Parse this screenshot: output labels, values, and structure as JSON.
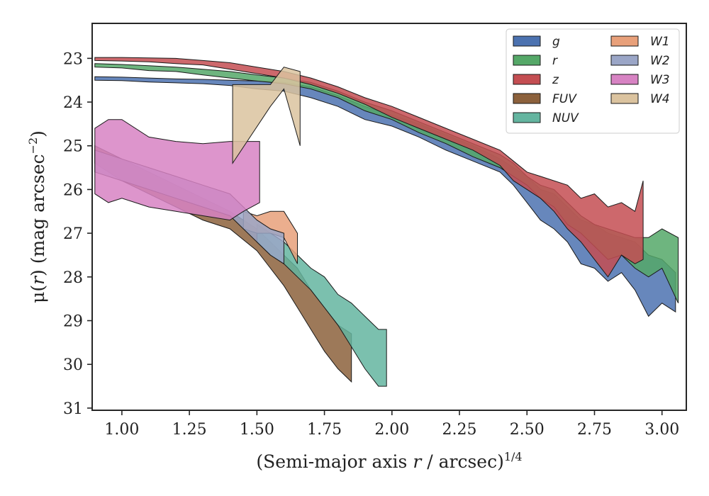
{
  "chart_data": {
    "type": "area",
    "xlabel": {
      "pre": "(Semi-major axis ",
      "var": "r",
      "post": " / arcsec)",
      "sup": "1/4"
    },
    "ylabel": {
      "pre": "μ(",
      "var": "r",
      "post": ") (mag arcsec",
      "sup": "−2",
      "end": ")"
    },
    "xlim": [
      0.89,
      3.09
    ],
    "ylim": [
      31.05,
      22.2
    ],
    "y_inverted": true,
    "xticks": [
      1.0,
      1.25,
      1.5,
      1.75,
      2.0,
      2.25,
      2.5,
      2.75,
      3.0
    ],
    "xtick_labels": [
      "1.00",
      "1.25",
      "1.50",
      "1.75",
      "2.00",
      "2.25",
      "2.50",
      "2.75",
      "3.00"
    ],
    "yticks": [
      23,
      24,
      25,
      26,
      27,
      28,
      29,
      30,
      31
    ],
    "ytick_labels": [
      "23",
      "24",
      "25",
      "26",
      "27",
      "28",
      "29",
      "30",
      "31"
    ],
    "grid": false,
    "legend": {
      "placement": "top-right",
      "columns": 2
    },
    "series": [
      {
        "name": "g",
        "color": "#4c72b0",
        "x": [
          0.9,
          1.0,
          1.1,
          1.2,
          1.3,
          1.4,
          1.5,
          1.6,
          1.7,
          1.8,
          1.9,
          2.0,
          2.1,
          2.2,
          2.3,
          2.4,
          2.45,
          2.5,
          2.55,
          2.6,
          2.65,
          2.7,
          2.75,
          2.8,
          2.85,
          2.9,
          2.95,
          3.0,
          3.05
        ],
        "y1": [
          23.42,
          23.43,
          23.45,
          23.47,
          23.48,
          23.5,
          23.52,
          23.55,
          23.65,
          23.85,
          24.1,
          24.3,
          24.5,
          24.75,
          25.0,
          25.3,
          25.5,
          25.7,
          26.0,
          26.1,
          26.4,
          26.7,
          26.8,
          27.0,
          27.1,
          27.2,
          27.5,
          27.6,
          27.9
        ],
        "y2": [
          23.5,
          23.51,
          23.54,
          23.56,
          23.58,
          23.62,
          23.7,
          23.75,
          23.9,
          24.1,
          24.4,
          24.55,
          24.8,
          25.1,
          25.35,
          25.6,
          25.9,
          26.3,
          26.7,
          26.9,
          27.2,
          27.7,
          27.8,
          28.1,
          27.9,
          28.3,
          28.9,
          28.6,
          28.8
        ]
      },
      {
        "name": "r",
        "color": "#55a868",
        "x": [
          0.9,
          1.0,
          1.1,
          1.2,
          1.3,
          1.4,
          1.5,
          1.6,
          1.7,
          1.8,
          1.9,
          2.0,
          2.1,
          2.2,
          2.3,
          2.4,
          2.45,
          2.5,
          2.55,
          2.6,
          2.65,
          2.7,
          2.75,
          2.8,
          2.85,
          2.9,
          2.95,
          3.0,
          3.06
        ],
        "y1": [
          23.12,
          23.14,
          23.17,
          23.2,
          23.25,
          23.3,
          23.38,
          23.45,
          23.55,
          23.75,
          24.0,
          24.2,
          24.45,
          24.7,
          24.95,
          25.2,
          25.4,
          25.7,
          25.9,
          26.0,
          26.3,
          26.6,
          26.8,
          26.9,
          27.0,
          27.1,
          27.1,
          26.9,
          27.1
        ],
        "y2": [
          23.2,
          23.22,
          23.28,
          23.3,
          23.38,
          23.45,
          23.52,
          23.58,
          23.7,
          23.9,
          24.2,
          24.4,
          24.7,
          24.95,
          25.25,
          25.5,
          25.7,
          25.9,
          26.2,
          26.4,
          26.8,
          27.0,
          27.3,
          27.6,
          27.5,
          27.8,
          28.0,
          27.8,
          28.6
        ]
      },
      {
        "name": "z",
        "color": "#c44e52",
        "x": [
          0.9,
          1.0,
          1.1,
          1.2,
          1.3,
          1.4,
          1.5,
          1.6,
          1.7,
          1.8,
          1.9,
          2.0,
          2.1,
          2.2,
          2.3,
          2.4,
          2.45,
          2.5,
          2.55,
          2.6,
          2.65,
          2.7,
          2.75,
          2.8,
          2.85,
          2.9,
          2.93
        ],
        "y1": [
          22.98,
          22.98,
          22.99,
          23.0,
          23.05,
          23.1,
          23.2,
          23.3,
          23.45,
          23.65,
          23.9,
          24.1,
          24.35,
          24.6,
          24.85,
          25.1,
          25.35,
          25.6,
          25.7,
          25.8,
          25.9,
          26.2,
          26.1,
          26.4,
          26.3,
          26.5,
          25.8
        ],
        "y2": [
          23.05,
          23.06,
          23.08,
          23.12,
          23.15,
          23.25,
          23.35,
          23.45,
          23.6,
          23.8,
          24.05,
          24.35,
          24.6,
          24.85,
          25.1,
          25.45,
          25.8,
          26.0,
          26.2,
          26.5,
          26.9,
          27.2,
          27.6,
          28.0,
          27.5,
          27.7,
          27.6
        ]
      },
      {
        "name": "FUV",
        "color": "#8c613c",
        "x": [
          0.9,
          1.0,
          1.1,
          1.2,
          1.3,
          1.4,
          1.5,
          1.55,
          1.6,
          1.65,
          1.7,
          1.75,
          1.8,
          1.85
        ],
        "y1": [
          25.0,
          25.3,
          25.6,
          25.9,
          26.2,
          26.5,
          26.9,
          27.2,
          27.5,
          27.8,
          28.3,
          28.7,
          29.1,
          29.3
        ],
        "y2": [
          25.4,
          25.8,
          26.1,
          26.4,
          26.7,
          26.9,
          27.4,
          27.8,
          28.2,
          28.7,
          29.2,
          29.7,
          30.1,
          30.4
        ]
      },
      {
        "name": "NUV",
        "color": "#64b5a0",
        "x": [
          1.5,
          1.55,
          1.6,
          1.65,
          1.7,
          1.75,
          1.8,
          1.85,
          1.9,
          1.95,
          1.98
        ],
        "y1": [
          26.8,
          27.0,
          27.2,
          27.5,
          27.8,
          28.0,
          28.4,
          28.6,
          28.9,
          29.2,
          29.2
        ],
        "y2": [
          27.2,
          27.5,
          27.7,
          28.0,
          28.3,
          28.7,
          29.1,
          29.6,
          30.1,
          30.5,
          30.5
        ]
      },
      {
        "name": "W1",
        "color": "#e8a07a",
        "x": [
          1.45,
          1.5,
          1.55,
          1.6,
          1.65
        ],
        "y1": [
          26.5,
          26.6,
          26.5,
          26.5,
          27.0
        ],
        "y2": [
          26.9,
          27.0,
          27.0,
          27.1,
          27.7
        ]
      },
      {
        "name": "W2",
        "color": "#9ba6c7",
        "x": [
          0.9,
          1.0,
          1.1,
          1.2,
          1.3,
          1.4,
          1.45,
          1.5,
          1.55,
          1.6
        ],
        "y1": [
          25.1,
          25.3,
          25.5,
          25.7,
          25.9,
          26.1,
          26.4,
          26.7,
          26.9,
          27.0
        ],
        "y2": [
          25.6,
          25.8,
          26.0,
          26.2,
          26.4,
          26.6,
          26.9,
          27.2,
          27.5,
          27.7
        ]
      },
      {
        "name": "W3",
        "color": "#d783c3",
        "x": [
          0.9,
          0.95,
          1.0,
          1.1,
          1.2,
          1.3,
          1.4,
          1.45,
          1.51
        ],
        "y1": [
          24.6,
          24.4,
          24.4,
          24.8,
          24.9,
          24.95,
          24.9,
          24.9,
          24.9
        ],
        "y2": [
          26.1,
          26.3,
          26.2,
          26.4,
          26.5,
          26.6,
          26.7,
          26.5,
          26.3
        ]
      },
      {
        "name": "W4",
        "color": "#dbc39f",
        "x": [
          1.41,
          1.55,
          1.6,
          1.66
        ],
        "y1": [
          23.6,
          23.6,
          23.2,
          23.3
        ],
        "y2": [
          25.4,
          24.1,
          23.7,
          25.0
        ]
      }
    ]
  }
}
